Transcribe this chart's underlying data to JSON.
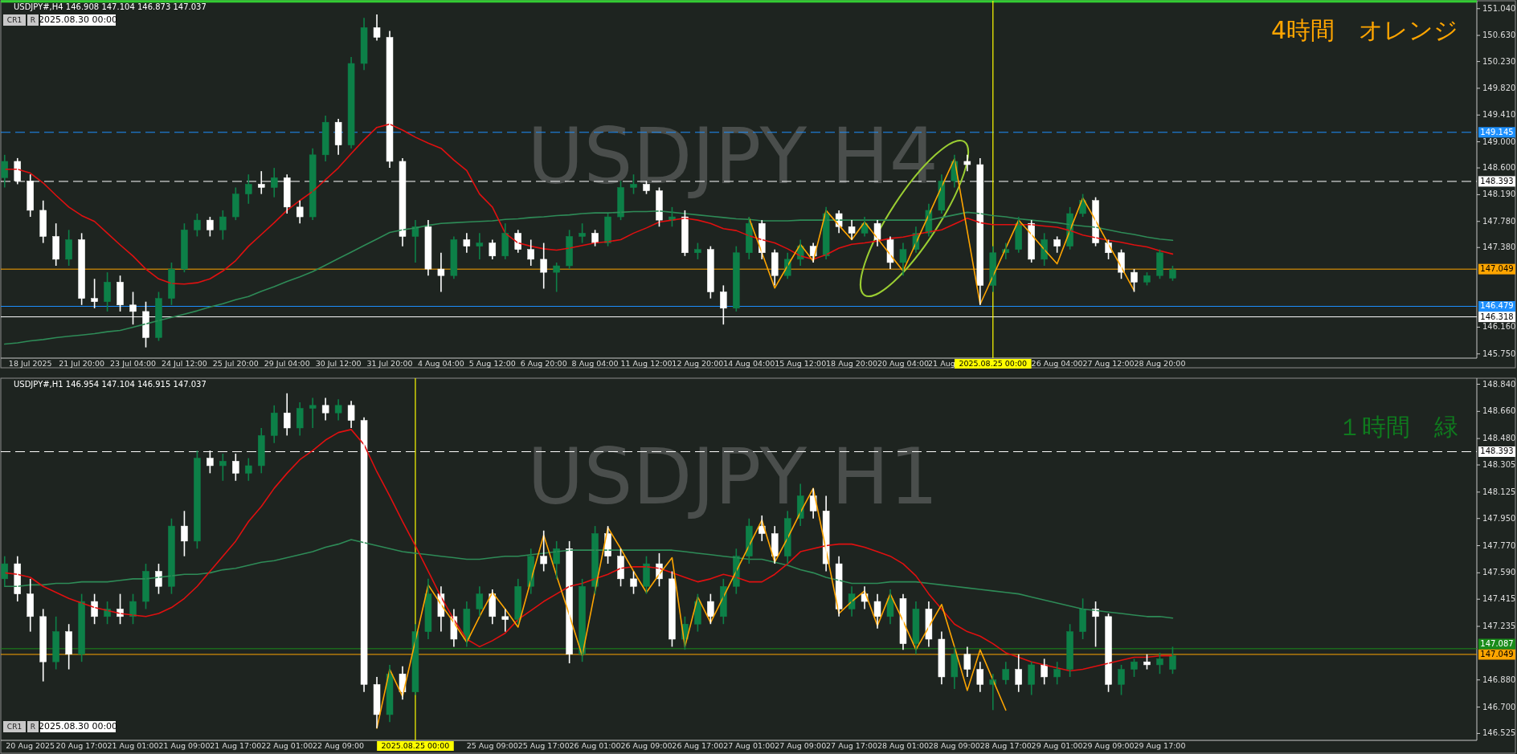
{
  "chart_data": [
    {
      "type": "candlestick",
      "title": "USDJPY#,H4  146.908 147.104 146.873 147.037",
      "categories": [
        null,
        null,
        "18 Jul 2025",
        null,
        null,
        null,
        "21 Jul 20:00",
        null,
        null,
        null,
        "23 Jul 04:00",
        null,
        null,
        null,
        "24 Jul 12:00",
        null,
        null,
        null,
        "25 Jul 20:00",
        null,
        null,
        null,
        "29 Jul 04:00",
        null,
        null,
        null,
        "30 Jul 12:00",
        null,
        null,
        null,
        "31 Jul 20:00",
        null,
        null,
        null,
        "4 Aug 04:00",
        null,
        null,
        null,
        "5 Aug 12:00",
        null,
        null,
        null,
        "6 Aug 20:00",
        null,
        null,
        null,
        "8 Aug 04:00",
        null,
        null,
        null,
        "11 Aug 12:00",
        null,
        null,
        null,
        "12 Aug 20:00",
        null,
        null,
        null,
        "14 Aug 04:00",
        null,
        null,
        null,
        "15 Aug 12:00",
        null,
        null,
        null,
        "18 Aug 20:00",
        null,
        null,
        null,
        "20 Aug 04:00",
        null,
        null,
        "21 Aug",
        null,
        null,
        null,
        "2025.08.25 00:00",
        null,
        null,
        null,
        null,
        "26 Aug 04:00",
        null,
        null,
        null,
        "27 Aug 12:00",
        null,
        null,
        null,
        "28 Aug 20:00",
        null
      ],
      "ohlc": [
        [
          148.45,
          148.8,
          148.3,
          148.7
        ],
        [
          148.7,
          148.75,
          148.35,
          148.4
        ],
        [
          148.4,
          148.5,
          147.85,
          147.95
        ],
        [
          147.95,
          148.1,
          147.45,
          147.55
        ],
        [
          147.55,
          147.75,
          147.1,
          147.2
        ],
        [
          147.2,
          147.65,
          147.1,
          147.5
        ],
        [
          147.5,
          147.6,
          146.5,
          146.6
        ],
        [
          146.6,
          146.9,
          146.45,
          146.55
        ],
        [
          146.55,
          147.0,
          146.4,
          146.85
        ],
        [
          146.85,
          146.95,
          146.4,
          146.5
        ],
        [
          146.5,
          146.7,
          146.2,
          146.4
        ],
        [
          146.4,
          146.55,
          145.85,
          146.0
        ],
        [
          146.0,
          146.7,
          145.95,
          146.6
        ],
        [
          146.6,
          147.15,
          146.5,
          147.05
        ],
        [
          147.05,
          147.75,
          147.0,
          147.65
        ],
        [
          147.65,
          147.9,
          147.55,
          147.8
        ],
        [
          147.8,
          147.85,
          147.55,
          147.65
        ],
        [
          147.65,
          147.95,
          147.5,
          147.85
        ],
        [
          147.85,
          148.3,
          147.8,
          148.2
        ],
        [
          148.2,
          148.5,
          148.05,
          148.35
        ],
        [
          148.35,
          148.55,
          148.2,
          148.3
        ],
        [
          148.3,
          148.6,
          148.15,
          148.45
        ],
        [
          148.45,
          148.5,
          147.9,
          148.0
        ],
        [
          148.0,
          148.1,
          147.75,
          147.85
        ],
        [
          147.85,
          148.9,
          147.8,
          148.8
        ],
        [
          148.8,
          149.4,
          148.7,
          149.3
        ],
        [
          149.3,
          149.35,
          148.8,
          148.95
        ],
        [
          148.95,
          150.3,
          148.9,
          150.2
        ],
        [
          150.2,
          150.9,
          150.1,
          150.75
        ],
        [
          150.75,
          150.95,
          150.55,
          150.6
        ],
        [
          150.6,
          150.7,
          148.6,
          148.7
        ],
        [
          148.7,
          148.75,
          147.4,
          147.55
        ],
        [
          147.55,
          147.8,
          147.15,
          147.7
        ],
        [
          147.7,
          147.8,
          146.95,
          147.05
        ],
        [
          147.05,
          147.3,
          146.7,
          146.95
        ],
        [
          146.95,
          147.55,
          146.9,
          147.5
        ],
        [
          147.5,
          147.6,
          147.3,
          147.4
        ],
        [
          147.4,
          147.6,
          147.2,
          147.45
        ],
        [
          147.45,
          147.5,
          147.2,
          147.25
        ],
        [
          147.25,
          147.75,
          147.2,
          147.6
        ],
        [
          147.6,
          147.65,
          147.3,
          147.35
        ],
        [
          147.35,
          147.5,
          147.1,
          147.2
        ],
        [
          147.2,
          147.45,
          146.75,
          147.0
        ],
        [
          147.0,
          147.15,
          146.7,
          147.1
        ],
        [
          147.1,
          147.65,
          147.05,
          147.55
        ],
        [
          147.55,
          147.75,
          147.45,
          147.6
        ],
        [
          147.6,
          147.65,
          147.4,
          147.45
        ],
        [
          147.45,
          147.9,
          147.4,
          147.85
        ],
        [
          147.85,
          148.4,
          147.8,
          148.3
        ],
        [
          148.3,
          148.5,
          148.2,
          148.35
        ],
        [
          148.35,
          148.4,
          148.2,
          148.25
        ],
        [
          148.25,
          148.3,
          147.7,
          147.8
        ],
        [
          147.8,
          148.0,
          147.7,
          147.85
        ],
        [
          147.85,
          147.95,
          147.25,
          147.3
        ],
        [
          147.3,
          147.45,
          147.2,
          147.35
        ],
        [
          147.35,
          147.4,
          146.6,
          146.7
        ],
        [
          146.7,
          146.8,
          146.2,
          146.45
        ],
        [
          146.45,
          147.4,
          146.4,
          147.3
        ],
        [
          147.3,
          147.85,
          147.2,
          147.75
        ],
        [
          147.75,
          147.8,
          147.2,
          147.3
        ],
        [
          147.3,
          147.35,
          146.8,
          146.95
        ],
        [
          146.95,
          147.3,
          146.9,
          147.2
        ],
        [
          147.2,
          147.5,
          147.1,
          147.4
        ],
        [
          147.4,
          147.45,
          147.15,
          147.25
        ],
        [
          147.25,
          148.0,
          147.2,
          147.9
        ],
        [
          147.9,
          147.95,
          147.6,
          147.7
        ],
        [
          147.7,
          147.8,
          147.5,
          147.6
        ],
        [
          147.6,
          147.85,
          147.55,
          147.75
        ],
        [
          147.75,
          147.8,
          147.4,
          147.5
        ],
        [
          147.5,
          147.55,
          147.05,
          147.15
        ],
        [
          147.15,
          147.45,
          146.95,
          147.35
        ],
        [
          147.35,
          147.7,
          147.3,
          147.6
        ],
        [
          147.6,
          148.05,
          147.55,
          147.95
        ],
        [
          147.95,
          148.5,
          147.9,
          148.4
        ],
        [
          148.4,
          148.8,
          148.3,
          148.7
        ],
        [
          148.7,
          148.8,
          148.55,
          148.65
        ],
        [
          148.65,
          148.75,
          146.5,
          146.8
        ],
        [
          146.8,
          147.4,
          146.7,
          147.3
        ],
        [
          147.3,
          147.45,
          147.2,
          147.35
        ],
        [
          147.35,
          147.85,
          147.3,
          147.75
        ],
        [
          147.75,
          147.8,
          147.15,
          147.2
        ],
        [
          147.2,
          147.6,
          147.1,
          147.5
        ],
        [
          147.5,
          147.55,
          147.3,
          147.4
        ],
        [
          147.4,
          148.0,
          147.35,
          147.9
        ],
        [
          147.9,
          148.2,
          147.85,
          148.1
        ],
        [
          148.1,
          148.15,
          147.4,
          147.45
        ],
        [
          147.45,
          147.5,
          147.2,
          147.3
        ],
        [
          147.3,
          147.35,
          146.9,
          147.0
        ],
        [
          147.0,
          147.05,
          146.7,
          146.85
        ],
        [
          146.85,
          147.0,
          146.8,
          146.95
        ],
        [
          146.95,
          147.35,
          146.9,
          147.3
        ],
        [
          146.91,
          147.1,
          146.87,
          147.04
        ]
      ],
      "colors": [
        "#0d8048",
        "#ffffff",
        "#ffffff",
        "#ffffff",
        "#ffffff",
        "#0d8048",
        "#ffffff",
        "#ffffff",
        "#0d8048",
        "#ffffff",
        "#ffffff",
        "#ffffff",
        "#0d8048",
        "#0d8048",
        "#0d8048",
        "#0d8048",
        "#ffffff",
        "#0d8048",
        "#0d8048",
        "#0d8048",
        "#ffffff",
        "#0d8048",
        "#ffffff",
        "#ffffff",
        "#0d8048",
        "#0d8048",
        "#ffffff",
        "#0d8048",
        "#0d8048",
        "#ffffff",
        "#ffffff",
        "#ffffff",
        "#0d8048",
        "#ffffff",
        "#ffffff",
        "#0d8048",
        "#ffffff",
        "#0d8048",
        "#ffffff",
        "#0d8048",
        "#ffffff",
        "#ffffff",
        "#ffffff",
        "#0d8048",
        "#0d8048",
        "#0d8048",
        "#ffffff",
        "#0d8048",
        "#0d8048",
        "#0d8048",
        "#ffffff",
        "#ffffff",
        "#0d8048",
        "#ffffff",
        "#0d8048",
        "#ffffff",
        "#ffffff",
        "#0d8048",
        "#0d8048",
        "#ffffff",
        "#ffffff",
        "#0d8048",
        "#0d8048",
        "#ffffff",
        "#0d8048",
        "#ffffff",
        "#ffffff",
        "#0d8048",
        "#ffffff",
        "#ffffff",
        "#0d8048",
        "#0d8048",
        "#0d8048",
        "#0d8048",
        "#0d8048",
        "#ffffff",
        "#ffffff",
        "#0d8048",
        "#0d8048",
        "#0d8048",
        "#ffffff",
        "#0d8048",
        "#ffffff",
        "#0d8048",
        "#0d8048",
        "#ffffff",
        "#ffffff",
        "#ffffff",
        "#ffffff",
        "#0d8048",
        "#0d8048",
        "#0d8048"
      ],
      "series": [
        {
          "type": "line",
          "color": "#2e8b57",
          "values": [
            145.9,
            145.92,
            145.95,
            145.97,
            146.0,
            146.02,
            146.04,
            146.06,
            146.09,
            146.11,
            146.16,
            146.21,
            146.26,
            146.31,
            146.36,
            146.41,
            146.47,
            146.52,
            146.58,
            146.63,
            146.71,
            146.78,
            146.86,
            146.93,
            147.01,
            147.11,
            147.21,
            147.31,
            147.41,
            147.51,
            147.61,
            147.65,
            147.68,
            147.72,
            147.75,
            147.76,
            147.77,
            147.78,
            147.79,
            147.81,
            147.82,
            147.84,
            147.85,
            147.87,
            147.88,
            147.9,
            147.91,
            147.91,
            147.92,
            147.93,
            147.93,
            147.94,
            147.92,
            147.9,
            147.88,
            147.86,
            147.84,
            147.82,
            147.81,
            147.79,
            147.79,
            147.79,
            147.8,
            147.8,
            147.8,
            147.8,
            147.8,
            147.8,
            147.8,
            147.8,
            147.8,
            147.8,
            147.8,
            147.84,
            147.88,
            147.92,
            147.9,
            147.87,
            147.85,
            147.82,
            147.8,
            147.78,
            147.76,
            147.73,
            147.71,
            147.69,
            147.65,
            147.61,
            147.58,
            147.54,
            147.51,
            147.49
          ]
        },
        {
          "type": "line",
          "color": "#e01010",
          "values": [
            148.58,
            148.58,
            148.52,
            148.37,
            148.18,
            148.0,
            147.87,
            147.78,
            147.6,
            147.42,
            147.25,
            147.05,
            146.9,
            146.83,
            146.82,
            146.84,
            146.9,
            147.02,
            147.18,
            147.4,
            147.58,
            147.76,
            147.95,
            148.1,
            148.24,
            148.42,
            148.6,
            148.82,
            149.03,
            149.22,
            149.27,
            149.18,
            149.07,
            148.98,
            148.9,
            148.72,
            148.56,
            148.2,
            148.0,
            147.6,
            147.45,
            147.4,
            147.36,
            147.34,
            147.37,
            147.41,
            147.45,
            147.47,
            147.5,
            147.6,
            147.68,
            147.77,
            147.8,
            147.83,
            147.8,
            147.75,
            147.67,
            147.64,
            147.56,
            147.5,
            147.45,
            147.36,
            147.25,
            147.2,
            147.27,
            147.37,
            147.43,
            147.45,
            147.48,
            147.52,
            147.54,
            147.58,
            147.62,
            147.65,
            147.74,
            147.83,
            147.76,
            147.73,
            147.73,
            147.73,
            147.73,
            147.71,
            147.69,
            147.64,
            147.57,
            147.53,
            147.49,
            147.46,
            147.42,
            147.39,
            147.33,
            147.28
          ]
        },
        {
          "type": "line",
          "color": "#ffa500",
          "values": [
            null,
            null,
            null,
            null,
            null,
            null,
            null,
            null,
            null,
            null,
            null,
            null,
            null,
            null,
            null,
            null,
            null,
            null,
            null,
            null,
            null,
            null,
            null,
            null,
            null,
            null,
            null,
            null,
            null,
            null,
            null,
            null,
            null,
            null,
            null,
            null,
            null,
            null,
            null,
            null,
            null,
            null,
            null,
            null,
            null,
            null,
            null,
            null,
            null,
            null,
            null,
            null,
            null,
            null,
            null,
            null,
            null,
            null,
            147.83,
            147.3,
            146.76,
            147.1,
            147.43,
            147.17,
            147.95,
            147.72,
            147.5,
            147.77,
            147.52,
            147.27,
            147.02,
            147.45,
            147.88,
            148.31,
            148.74,
            147.63,
            146.51,
            146.94,
            147.37,
            147.8,
            147.58,
            147.35,
            147.13,
            147.64,
            148.14,
            147.79,
            147.43,
            147.08,
            146.72,
            null,
            null,
            null
          ]
        }
      ],
      "ylim": [
        145.71,
        151.16
      ],
      "yticks": [
        {
          "value": 151.04,
          "label": "151.040"
        },
        {
          "value": 150.63,
          "label": "150.630"
        },
        {
          "value": 150.23,
          "label": "150.230"
        },
        {
          "value": 149.82,
          "label": "149.820"
        },
        {
          "value": 149.41,
          "label": "149.410"
        },
        {
          "value": 149.0,
          "label": "149.000"
        },
        {
          "value": 148.6,
          "label": "148.600"
        },
        {
          "value": 148.19,
          "label": "148.190"
        },
        {
          "value": 147.78,
          "label": "147.780"
        },
        {
          "value": 147.38,
          "label": "147.380"
        },
        {
          "value": 146.16,
          "label": "146.160"
        },
        {
          "value": 145.75,
          "label": "145.750"
        }
      ],
      "ref_lines": [
        {
          "axis": "y",
          "value": 151.15,
          "color": "#32cd32",
          "line_style": "solid"
        },
        {
          "axis": "y",
          "value": 149.145,
          "label": "149.145",
          "color": "#1e90ff",
          "line_style": "dashed"
        },
        {
          "axis": "y",
          "value": 148.393,
          "label": "148.393",
          "color": "#ffffff",
          "line_style": "dashed"
        },
        {
          "axis": "y",
          "value": 147.049,
          "label": "147.049",
          "color": "#ffa500",
          "line_style": "solid"
        },
        {
          "axis": "y",
          "value": 146.479,
          "label": "146.479",
          "color": "#1e90ff",
          "line_style": "solid"
        },
        {
          "axis": "y",
          "value": 146.318,
          "label": "146.318",
          "color": "#ffffff",
          "line_style": "solid"
        },
        {
          "axis": "x",
          "value": "2025.08.25 00:00",
          "color": "#ffff00",
          "line_style": "solid"
        }
      ],
      "annotations": [
        "USDJPY H4",
        "4時間　オレンジ",
        "CR1",
        "R",
        "2025.08.30 00:00"
      ]
    },
    {
      "type": "candlestick",
      "title": "USDJPY#,H1  146.954 147.104 146.915 147.037",
      "categories": [
        null,
        null,
        "20 Aug 2025",
        null,
        null,
        null,
        "20 Aug 17:00",
        null,
        null,
        null,
        "21 Aug 01:00",
        null,
        null,
        null,
        "21 Aug 09:00",
        null,
        null,
        null,
        "21 Aug 17:00",
        null,
        null,
        null,
        "22 Aug 01:00",
        null,
        null,
        null,
        "22 Aug 09:00",
        null,
        null,
        null,
        null,
        null,
        "2025.08.25 00:00",
        null,
        null,
        null,
        null,
        null,
        "25 Aug 09:00",
        null,
        null,
        null,
        "25 Aug 17:00",
        null,
        null,
        null,
        "26 Aug 01:00",
        null,
        null,
        null,
        "26 Aug 09:00",
        null,
        null,
        null,
        "26 Aug 17:00",
        null,
        null,
        null,
        "27 Aug 01:00",
        null,
        null,
        null,
        "27 Aug 09:00",
        null,
        null,
        null,
        "27 Aug 17:00",
        null,
        null,
        null,
        "28 Aug 01:00",
        null,
        null,
        null,
        "28 Aug 09:00",
        null,
        null,
        null,
        "28 Aug 17:00",
        null,
        null,
        null,
        "29 Aug 01:00",
        null,
        null,
        null,
        "29 Aug 09:00",
        null,
        null,
        null,
        "29 Aug 17:00",
        null
      ],
      "ohlc": [
        [
          147.55,
          147.7,
          147.5,
          147.65
        ],
        [
          147.65,
          147.7,
          147.4,
          147.45
        ],
        [
          147.45,
          147.55,
          147.2,
          147.3
        ],
        [
          147.3,
          147.35,
          146.87,
          147.0
        ],
        [
          147.0,
          147.3,
          146.95,
          147.2
        ],
        [
          147.2,
          147.25,
          146.95,
          147.05
        ],
        [
          147.05,
          147.45,
          147.0,
          147.4
        ],
        [
          147.4,
          147.45,
          147.25,
          147.3
        ],
        [
          147.3,
          147.4,
          147.25,
          147.35
        ],
        [
          147.35,
          147.45,
          147.25,
          147.3
        ],
        [
          147.3,
          147.45,
          147.25,
          147.4
        ],
        [
          147.4,
          147.65,
          147.35,
          147.6
        ],
        [
          147.6,
          147.65,
          147.45,
          147.5
        ],
        [
          147.5,
          147.95,
          147.45,
          147.9
        ],
        [
          147.9,
          148.0,
          147.7,
          147.8
        ],
        [
          147.8,
          148.4,
          147.75,
          148.35
        ],
        [
          148.35,
          148.4,
          148.25,
          148.3
        ],
        [
          148.3,
          148.38,
          148.2,
          148.33
        ],
        [
          148.33,
          148.38,
          148.2,
          148.25
        ],
        [
          148.25,
          148.35,
          148.2,
          148.3
        ],
        [
          148.3,
          148.55,
          148.25,
          148.5
        ],
        [
          148.5,
          148.7,
          148.45,
          148.65
        ],
        [
          148.65,
          148.78,
          148.5,
          148.55
        ],
        [
          148.55,
          148.72,
          148.5,
          148.68
        ],
        [
          148.68,
          148.75,
          148.55,
          148.7
        ],
        [
          148.7,
          148.75,
          148.6,
          148.65
        ],
        [
          148.65,
          148.74,
          148.6,
          148.7
        ],
        [
          148.7,
          148.73,
          148.55,
          148.6
        ],
        [
          148.6,
          148.62,
          146.8,
          146.85
        ],
        [
          146.85,
          146.9,
          146.56,
          146.65
        ],
        [
          146.65,
          146.98,
          146.6,
          146.92
        ],
        [
          146.92,
          146.97,
          146.75,
          146.8
        ],
        [
          146.8,
          147.25,
          146.78,
          147.2
        ],
        [
          147.2,
          147.55,
          147.15,
          147.45
        ],
        [
          147.45,
          147.5,
          147.2,
          147.3
        ],
        [
          147.3,
          147.35,
          147.1,
          147.15
        ],
        [
          147.15,
          147.4,
          147.1,
          147.35
        ],
        [
          147.35,
          147.5,
          147.3,
          147.45
        ],
        [
          147.45,
          147.48,
          147.25,
          147.3
        ],
        [
          147.3,
          147.35,
          147.2,
          147.28
        ],
        [
          147.28,
          147.55,
          147.25,
          147.5
        ],
        [
          147.5,
          147.75,
          147.45,
          147.7
        ],
        [
          147.7,
          147.87,
          147.6,
          147.65
        ],
        [
          147.65,
          147.8,
          147.55,
          147.75
        ],
        [
          147.75,
          147.8,
          146.99,
          147.05
        ],
        [
          147.05,
          147.55,
          147.0,
          147.5
        ],
        [
          147.5,
          147.9,
          147.45,
          147.85
        ],
        [
          147.85,
          147.9,
          147.65,
          147.7
        ],
        [
          147.7,
          147.75,
          147.5,
          147.55
        ],
        [
          147.55,
          147.6,
          147.45,
          147.5
        ],
        [
          147.5,
          147.7,
          147.45,
          147.65
        ],
        [
          147.65,
          147.72,
          147.5,
          147.55
        ],
        [
          147.55,
          147.6,
          147.1,
          147.15
        ],
        [
          147.15,
          147.3,
          147.08,
          147.25
        ],
        [
          147.25,
          147.45,
          147.2,
          147.4
        ],
        [
          147.4,
          147.45,
          147.25,
          147.3
        ],
        [
          147.3,
          147.55,
          147.25,
          147.5
        ],
        [
          147.5,
          147.75,
          147.45,
          147.7
        ],
        [
          147.7,
          147.95,
          147.65,
          147.9
        ],
        [
          147.9,
          147.97,
          147.8,
          147.85
        ],
        [
          147.85,
          147.9,
          147.65,
          147.7
        ],
        [
          147.7,
          148.0,
          147.65,
          147.95
        ],
        [
          147.95,
          148.18,
          147.9,
          148.1
        ],
        [
          148.1,
          148.15,
          147.95,
          148.0
        ],
        [
          148.0,
          148.1,
          147.6,
          147.65
        ],
        [
          147.65,
          147.7,
          147.3,
          147.35
        ],
        [
          147.35,
          147.5,
          147.3,
          147.45
        ],
        [
          147.45,
          147.5,
          147.35,
          147.4
        ],
        [
          147.4,
          147.45,
          147.22,
          147.3
        ],
        [
          147.3,
          147.48,
          147.25,
          147.42
        ],
        [
          147.42,
          147.45,
          147.08,
          147.12
        ],
        [
          147.12,
          147.4,
          147.05,
          147.35
        ],
        [
          147.35,
          147.4,
          147.1,
          147.15
        ],
        [
          147.15,
          147.2,
          146.85,
          146.9
        ],
        [
          146.9,
          147.1,
          146.82,
          147.05
        ],
        [
          147.05,
          147.1,
          146.9,
          146.95
        ],
        [
          146.95,
          147.0,
          146.8,
          146.85
        ],
        [
          146.85,
          146.92,
          146.68,
          146.88
        ],
        [
          146.88,
          147.0,
          146.85,
          146.95
        ],
        [
          146.95,
          147.05,
          146.8,
          146.85
        ],
        [
          146.85,
          147.0,
          146.78,
          146.98
        ],
        [
          146.98,
          147.02,
          146.85,
          146.9
        ],
        [
          146.9,
          147.0,
          146.85,
          146.95
        ],
        [
          146.95,
          147.25,
          146.9,
          147.2
        ],
        [
          147.2,
          147.42,
          147.15,
          147.35
        ],
        [
          147.35,
          147.4,
          147.1,
          147.3
        ],
        [
          147.3,
          147.32,
          146.8,
          146.85
        ],
        [
          146.85,
          146.98,
          146.78,
          146.95
        ],
        [
          146.95,
          147.02,
          146.9,
          147.0
        ],
        [
          147.0,
          147.05,
          146.95,
          146.98
        ],
        [
          146.98,
          147.06,
          146.92,
          147.02
        ],
        [
          146.95,
          147.1,
          146.92,
          147.04
        ]
      ],
      "colors": [
        "#0d8048",
        "#ffffff",
        "#ffffff",
        "#ffffff",
        "#0d8048",
        "#ffffff",
        "#0d8048",
        "#ffffff",
        "#0d8048",
        "#ffffff",
        "#0d8048",
        "#0d8048",
        "#ffffff",
        "#0d8048",
        "#ffffff",
        "#0d8048",
        "#ffffff",
        "#0d8048",
        "#ffffff",
        "#0d8048",
        "#0d8048",
        "#0d8048",
        "#ffffff",
        "#0d8048",
        "#0d8048",
        "#ffffff",
        "#0d8048",
        "#ffffff",
        "#ffffff",
        "#ffffff",
        "#0d8048",
        "#ffffff",
        "#0d8048",
        "#0d8048",
        "#ffffff",
        "#ffffff",
        "#0d8048",
        "#0d8048",
        "#ffffff",
        "#ffffff",
        "#0d8048",
        "#0d8048",
        "#ffffff",
        "#0d8048",
        "#ffffff",
        "#0d8048",
        "#0d8048",
        "#ffffff",
        "#ffffff",
        "#ffffff",
        "#0d8048",
        "#ffffff",
        "#ffffff",
        "#0d8048",
        "#0d8048",
        "#ffffff",
        "#0d8048",
        "#0d8048",
        "#0d8048",
        "#ffffff",
        "#ffffff",
        "#0d8048",
        "#0d8048",
        "#ffffff",
        "#ffffff",
        "#ffffff",
        "#0d8048",
        "#ffffff",
        "#ffffff",
        "#0d8048",
        "#ffffff",
        "#0d8048",
        "#ffffff",
        "#ffffff",
        "#0d8048",
        "#ffffff",
        "#ffffff",
        "#0d8048",
        "#0d8048",
        "#ffffff",
        "#0d8048",
        "#ffffff",
        "#0d8048",
        "#0d8048",
        "#0d8048",
        "#ffffff",
        "#ffffff",
        "#0d8048",
        "#0d8048",
        "#ffffff",
        "#0d8048",
        "#0d8048"
      ],
      "series": [
        {
          "type": "line",
          "color": "#2e8b57",
          "values": [
            147.5,
            147.5,
            147.51,
            147.51,
            147.52,
            147.52,
            147.53,
            147.53,
            147.53,
            147.54,
            147.55,
            147.55,
            147.56,
            147.57,
            147.58,
            147.58,
            147.59,
            147.61,
            147.62,
            147.64,
            147.66,
            147.67,
            147.69,
            147.71,
            147.73,
            147.76,
            147.78,
            147.81,
            147.79,
            147.77,
            147.75,
            147.73,
            147.72,
            147.71,
            147.7,
            147.69,
            147.68,
            147.68,
            147.69,
            147.7,
            147.7,
            147.71,
            147.72,
            147.73,
            147.74,
            147.74,
            147.74,
            147.74,
            147.74,
            147.74,
            147.74,
            147.74,
            147.74,
            147.73,
            147.72,
            147.71,
            147.7,
            147.69,
            147.68,
            147.68,
            147.66,
            147.64,
            147.61,
            147.59,
            147.56,
            147.54,
            147.52,
            147.52,
            147.52,
            147.53,
            147.53,
            147.53,
            147.52,
            147.51,
            147.5,
            147.49,
            147.48,
            147.47,
            147.46,
            147.45,
            147.43,
            147.41,
            147.39,
            147.37,
            147.35,
            147.34,
            147.33,
            147.32,
            147.31,
            147.3,
            147.3,
            147.29
          ]
        },
        {
          "type": "line",
          "color": "#e01010",
          "values": [
            147.59,
            147.58,
            147.56,
            147.5,
            147.46,
            147.42,
            147.39,
            147.36,
            147.34,
            147.32,
            147.31,
            147.3,
            147.32,
            147.36,
            147.42,
            147.5,
            147.6,
            147.7,
            147.8,
            147.93,
            148.03,
            148.15,
            148.25,
            148.34,
            148.4,
            148.47,
            148.52,
            148.54,
            148.44,
            148.26,
            148.1,
            147.93,
            147.77,
            147.6,
            147.43,
            147.28,
            147.15,
            147.1,
            147.14,
            147.19,
            147.28,
            147.34,
            147.4,
            147.45,
            147.5,
            147.52,
            147.55,
            147.58,
            147.62,
            147.63,
            147.63,
            147.62,
            147.59,
            147.56,
            147.53,
            147.55,
            147.58,
            147.56,
            147.53,
            147.53,
            147.58,
            147.65,
            147.73,
            147.75,
            147.77,
            147.78,
            147.78,
            147.76,
            147.73,
            147.7,
            147.65,
            147.57,
            147.45,
            147.35,
            147.25,
            147.2,
            147.17,
            147.12,
            147.06,
            147.03,
            147.0,
            146.98,
            146.96,
            146.94,
            146.95,
            146.97,
            146.99,
            147.01,
            147.03,
            147.03,
            147.04,
            147.04
          ]
        },
        {
          "type": "line",
          "color": "#ffa500",
          "values": [
            null,
            null,
            null,
            null,
            null,
            null,
            null,
            null,
            null,
            null,
            null,
            null,
            null,
            null,
            null,
            null,
            null,
            null,
            null,
            null,
            null,
            null,
            null,
            null,
            null,
            null,
            null,
            null,
            null,
            146.56,
            146.95,
            146.77,
            147.14,
            147.51,
            147.38,
            147.26,
            147.13,
            147.3,
            147.46,
            147.35,
            147.23,
            147.54,
            147.84,
            147.57,
            147.31,
            147.04,
            147.47,
            147.89,
            147.75,
            147.6,
            147.46,
            147.58,
            147.69,
            147.1,
            147.43,
            147.26,
            147.43,
            147.6,
            147.77,
            147.94,
            147.66,
            147.82,
            147.99,
            148.15,
            147.74,
            147.32,
            147.4,
            147.47,
            147.24,
            147.45,
            147.27,
            147.08,
            147.23,
            147.38,
            147.1,
            146.81,
            147.08,
            146.88,
            146.68,
            null,
            null,
            null,
            null,
            null,
            null,
            null,
            null,
            null,
            null,
            null,
            null,
            null
          ]
        }
      ],
      "ylim": [
        146.49,
        148.88
      ],
      "yticks": [
        {
          "value": 148.84,
          "label": "148.840"
        },
        {
          "value": 148.66,
          "label": "148.660"
        },
        {
          "value": 148.48,
          "label": "148.480"
        },
        {
          "value": 148.305,
          "label": "148.305"
        },
        {
          "value": 148.125,
          "label": "148.125"
        },
        {
          "value": 147.95,
          "label": "147.950"
        },
        {
          "value": 147.77,
          "label": "147.770"
        },
        {
          "value": 147.59,
          "label": "147.590"
        },
        {
          "value": 147.415,
          "label": "147.415"
        },
        {
          "value": 147.235,
          "label": "147.235"
        },
        {
          "value": 146.88,
          "label": "146.880"
        },
        {
          "value": 146.7,
          "label": "146.700"
        },
        {
          "value": 146.525,
          "label": "146.525"
        }
      ],
      "ref_lines": [
        {
          "axis": "y",
          "value": 148.393,
          "label": "148.393",
          "color": "#ffffff",
          "line_style": "dashed"
        },
        {
          "axis": "y",
          "value": 147.087,
          "label": "147.087",
          "color": "#1a8c1a",
          "line_style": "solid"
        },
        {
          "axis": "y",
          "value": 147.049,
          "label": "147.049",
          "color": "#ffa500",
          "line_style": "solid"
        },
        {
          "axis": "x",
          "value": "2025.08.25 00:00",
          "color": "#ffff00",
          "line_style": "solid"
        }
      ],
      "annotations": [
        "USDJPY H1",
        "１時間　緑",
        "CR1",
        "R",
        "2025.08.30 00:00"
      ]
    }
  ]
}
